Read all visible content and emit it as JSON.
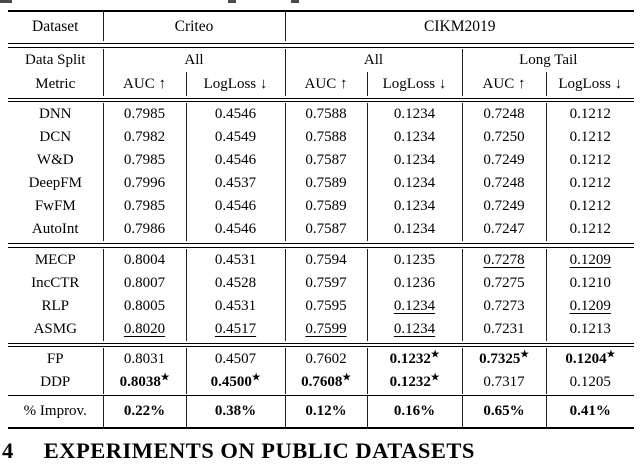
{
  "table": {
    "star_symbol": "★",
    "header": {
      "dataset_label": "Dataset",
      "datasets": [
        "Criteo",
        "CIKM2019"
      ],
      "data_split_label": "Data Split",
      "metric_label": "Metric",
      "splits": [
        "All",
        "All",
        "Long Tail"
      ],
      "metrics": [
        "AUC ↑",
        "LogLoss ↓",
        "AUC ↑",
        "LogLoss ↓",
        "AUC ↑",
        "LogLoss ↓"
      ]
    },
    "groups": [
      {
        "id": "baselines",
        "rows": [
          {
            "model": "DNN",
            "cells": [
              "0.7985",
              "0.4546",
              "0.7588",
              "0.1234",
              "0.7248",
              "0.1212"
            ]
          },
          {
            "model": "DCN",
            "cells": [
              "0.7982",
              "0.4549",
              "0.7588",
              "0.1234",
              "0.7250",
              "0.1212"
            ]
          },
          {
            "model": "W&D",
            "cells": [
              "0.7985",
              "0.4546",
              "0.7587",
              "0.1234",
              "0.7249",
              "0.1212"
            ]
          },
          {
            "model": "DeepFM",
            "cells": [
              "0.7996",
              "0.4537",
              "0.7589",
              "0.1234",
              "0.7248",
              "0.1212"
            ]
          },
          {
            "model": "FwFM",
            "cells": [
              "0.7985",
              "0.4546",
              "0.7589",
              "0.1234",
              "0.7249",
              "0.1212"
            ]
          },
          {
            "model": "AutoInt",
            "cells": [
              "0.7986",
              "0.4546",
              "0.7587",
              "0.1234",
              "0.7247",
              "0.1212"
            ]
          }
        ]
      },
      {
        "id": "incremental",
        "rows": [
          {
            "model": "MECP",
            "cells": [
              "0.8004",
              "0.4531",
              "0.7594",
              "0.1235",
              {
                "v": "0.7278",
                "u": true
              },
              {
                "v": "0.1209",
                "u": true
              }
            ]
          },
          {
            "model": "IncCTR",
            "cells": [
              "0.8007",
              "0.4528",
              "0.7597",
              "0.1236",
              "0.7275",
              "0.1210"
            ]
          },
          {
            "model": "RLP",
            "cells": [
              "0.8005",
              "0.4531",
              "0.7595",
              {
                "v": "0.1234",
                "u": true
              },
              "0.7273",
              {
                "v": "0.1209",
                "u": true
              }
            ]
          },
          {
            "model": "ASMG",
            "cells": [
              {
                "v": "0.8020",
                "u": true
              },
              {
                "v": "0.4517",
                "u": true
              },
              {
                "v": "0.7599",
                "u": true
              },
              {
                "v": "0.1234",
                "u": true
              },
              "0.7231",
              "0.1213"
            ]
          }
        ]
      },
      {
        "id": "proposed",
        "rows": [
          {
            "model": "FP",
            "cells": [
              "0.8031",
              "0.4507",
              "0.7602",
              {
                "v": "0.1232",
                "b": true,
                "s": true
              },
              {
                "v": "0.7325",
                "b": true,
                "s": true
              },
              {
                "v": "0.1204",
                "b": true,
                "s": true
              }
            ]
          },
          {
            "model": "DDP",
            "cells": [
              {
                "v": "0.8038",
                "b": true,
                "s": true
              },
              {
                "v": "0.4500",
                "b": true,
                "s": true
              },
              {
                "v": "0.7608",
                "b": true,
                "s": true
              },
              {
                "v": "0.1232",
                "b": true,
                "s": true
              },
              "0.7317",
              "0.1205"
            ]
          }
        ]
      },
      {
        "id": "improvement",
        "rows": [
          {
            "model": "% Improv.",
            "cells": [
              {
                "v": "0.22%",
                "b": true
              },
              {
                "v": "0.38%",
                "b": true
              },
              {
                "v": "0.12%",
                "b": true
              },
              {
                "v": "0.16%",
                "b": true
              },
              {
                "v": "0.65%",
                "b": true
              },
              {
                "v": "0.41%",
                "b": true
              }
            ]
          }
        ]
      }
    ]
  },
  "section": {
    "number": "4",
    "title": "EXPERIMENTS ON PUBLIC DATASETS"
  }
}
